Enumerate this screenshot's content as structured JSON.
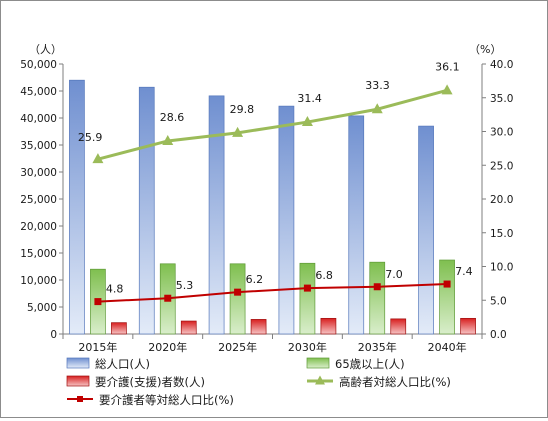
{
  "chart_data": {
    "type": "bar",
    "title": "",
    "categories": [
      "2015年",
      "2020年",
      "2025年",
      "2030年",
      "2035年",
      "2040年"
    ],
    "left_axis": {
      "unit_label": "（人）",
      "ylim": [
        0,
        50000
      ],
      "ticks": [
        0,
        5000,
        10000,
        15000,
        20000,
        25000,
        30000,
        35000,
        40000,
        45000,
        50000
      ],
      "tick_labels": [
        "0",
        "5,000",
        "10,000",
        "15,000",
        "20,000",
        "25,000",
        "30,000",
        "35,000",
        "40,000",
        "45,000",
        "50,000"
      ]
    },
    "right_axis": {
      "unit_label": "（%）",
      "ylim": [
        0,
        40
      ],
      "ticks": [
        0,
        5,
        10,
        15,
        20,
        25,
        30,
        35,
        40
      ],
      "tick_labels": [
        "0.0",
        "5.0",
        "10.0",
        "15.0",
        "20.0",
        "25.0",
        "30.0",
        "35.0",
        "40.0"
      ]
    },
    "bar_series": [
      {
        "name": "総人口(人)",
        "color": "#6f8fd0",
        "values": [
          47000,
          45700,
          44100,
          42200,
          40400,
          38500
        ]
      },
      {
        "name": "65歳以上(人)",
        "color": "#7fbf4f",
        "values": [
          12000,
          13000,
          13000,
          13100,
          13300,
          13700
        ]
      },
      {
        "name": "要介護(支援)者数(人)",
        "color": "#d82020",
        "values": [
          2100,
          2400,
          2700,
          2900,
          2800,
          2900
        ]
      }
    ],
    "line_series": [
      {
        "name": "高齢者対総人口比(%)",
        "color": "#9bbb59",
        "marker": "triangle",
        "values": [
          25.9,
          28.6,
          29.8,
          31.4,
          33.3,
          36.1
        ],
        "labels": [
          "25.9",
          "28.6",
          "29.8",
          "31.4",
          "33.3",
          "36.1"
        ]
      },
      {
        "name": "要介護者等対総人口比(%)",
        "color": "#c00000",
        "marker": "square",
        "values": [
          4.8,
          5.3,
          6.2,
          6.8,
          7.0,
          7.4
        ],
        "labels": [
          "4.8",
          "5.3",
          "6.2",
          "6.8",
          "7.0",
          "7.4"
        ]
      }
    ],
    "legend_position": "bottom",
    "grid": false
  }
}
